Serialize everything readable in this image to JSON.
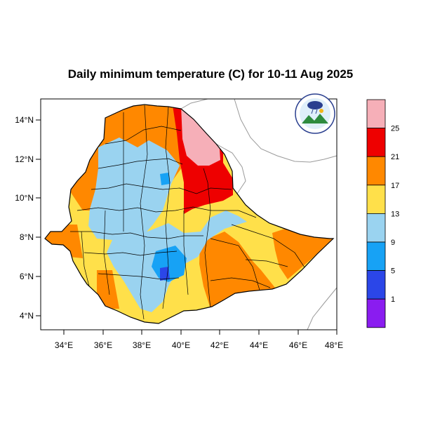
{
  "title": "Daily minimum temperature (C) for 10-11 Aug 2025",
  "map": {
    "lon_range": [
      33,
      48.2
    ],
    "lat_range": [
      3.2,
      15
    ],
    "x_ticks": [
      "34°E",
      "36°E",
      "38°E",
      "40°E",
      "42°E",
      "44°E",
      "46°E",
      "48°E"
    ],
    "y_ticks": [
      "14°N",
      "12°N",
      "10°N",
      "8°N",
      "6°N",
      "4°N"
    ]
  },
  "colorbar": {
    "labels": [
      "25",
      "21",
      "17",
      "13",
      "9",
      "5",
      "1"
    ],
    "colors": [
      "#f6afb8",
      "#ee0000",
      "#ff8800",
      "#ffe04a",
      "#9ad3f0",
      "#17a2f5",
      "#2b46e8",
      "#8a1cf0"
    ]
  },
  "logo": {
    "label": "Ethiopian Meteorology Institute logo"
  },
  "colors": {
    "accent_cool": "#9ad3f0",
    "accent_warm": "#ff8800"
  }
}
